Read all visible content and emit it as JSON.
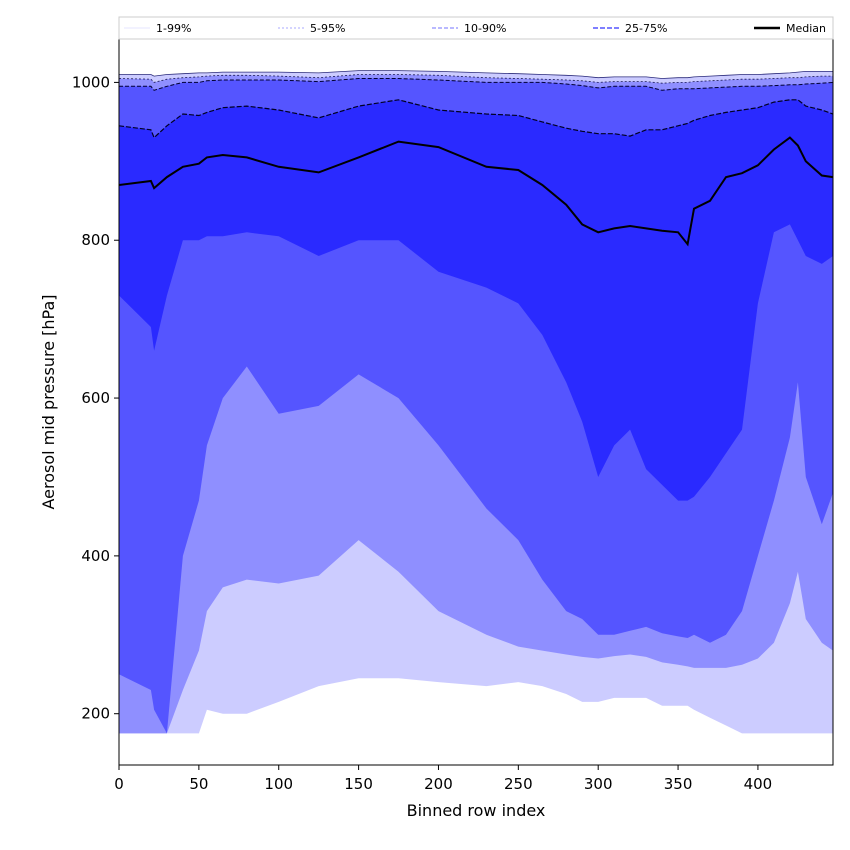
{
  "chart_data": {
    "type": "area",
    "title": "",
    "xlabel": "Binned row index",
    "ylabel": "Aerosol mid pressure [hPa]",
    "xlim": [
      0,
      447
    ],
    "ylim": [
      135,
      1055
    ],
    "xticks": [
      0,
      50,
      100,
      150,
      200,
      250,
      300,
      350,
      400
    ],
    "yticks": [
      200,
      400,
      600,
      800,
      1000
    ],
    "legend_position": "top",
    "legend": [
      {
        "label": "1-99%",
        "color": "#ccccff",
        "style": "solid"
      },
      {
        "label": "5-95%",
        "color": "#8f8fff",
        "style": "dotted"
      },
      {
        "label": "10-90%",
        "color": "#5555ff",
        "style": "dashed"
      },
      {
        "label": "25-75%",
        "color": "#2a2aff",
        "style": "dashed"
      },
      {
        "label": "Median",
        "color": "#000000",
        "style": "solid"
      }
    ],
    "x": [
      0,
      20,
      22,
      30,
      40,
      50,
      55,
      65,
      80,
      100,
      125,
      150,
      175,
      200,
      230,
      250,
      265,
      280,
      290,
      300,
      310,
      320,
      330,
      340,
      350,
      356,
      360,
      370,
      380,
      390,
      400,
      410,
      420,
      425,
      430,
      440,
      447
    ],
    "series": [
      {
        "name": "p1",
        "values": [
          175,
          175,
          175,
          175,
          175,
          175,
          205,
          200,
          200,
          215,
          235,
          245,
          245,
          240,
          235,
          240,
          235,
          225,
          215,
          215,
          220,
          220,
          220,
          210,
          210,
          210,
          205,
          195,
          185,
          175,
          175,
          175,
          175,
          175,
          175,
          175,
          175
        ]
      },
      {
        "name": "p5",
        "values": [
          175,
          175,
          175,
          175,
          230,
          280,
          330,
          360,
          370,
          365,
          375,
          420,
          380,
          330,
          300,
          285,
          280,
          275,
          272,
          270,
          273,
          275,
          272,
          265,
          262,
          260,
          258,
          258,
          258,
          262,
          270,
          290,
          340,
          380,
          320,
          290,
          280
        ]
      },
      {
        "name": "p10",
        "values": [
          250,
          230,
          205,
          175,
          400,
          470,
          540,
          600,
          640,
          580,
          590,
          630,
          600,
          540,
          460,
          420,
          370,
          330,
          320,
          300,
          300,
          305,
          310,
          302,
          298,
          296,
          300,
          290,
          300,
          330,
          400,
          470,
          550,
          620,
          500,
          440,
          480
        ]
      },
      {
        "name": "p25",
        "values": [
          730,
          690,
          660,
          730,
          800,
          800,
          805,
          805,
          810,
          805,
          780,
          800,
          800,
          760,
          740,
          720,
          680,
          620,
          570,
          500,
          540,
          560,
          510,
          490,
          470,
          470,
          475,
          500,
          530,
          560,
          720,
          810,
          820,
          800,
          780,
          770,
          780
        ]
      },
      {
        "name": "median",
        "values": [
          870,
          875,
          866,
          880,
          893,
          897,
          905,
          908,
          905,
          893,
          886,
          905,
          925,
          918,
          893,
          889,
          870,
          845,
          820,
          810,
          815,
          818,
          815,
          812,
          810,
          795,
          840,
          850,
          880,
          885,
          895,
          915,
          930,
          920,
          900,
          882,
          880
        ]
      },
      {
        "name": "p75",
        "values": [
          945,
          940,
          930,
          945,
          960,
          958,
          962,
          968,
          970,
          965,
          955,
          970,
          978,
          965,
          960,
          958,
          950,
          942,
          938,
          935,
          935,
          932,
          940,
          940,
          945,
          948,
          952,
          958,
          962,
          965,
          968,
          975,
          978,
          978,
          970,
          965,
          960
        ]
      },
      {
        "name": "p90",
        "values": [
          995,
          995,
          990,
          995,
          1000,
          1000,
          1002,
          1003,
          1003,
          1003,
          1001,
          1005,
          1005,
          1003,
          1000,
          1000,
          1000,
          998,
          996,
          993,
          995,
          995,
          995,
          990,
          992,
          992,
          992,
          993,
          994,
          995,
          995,
          996,
          997,
          997,
          998,
          999,
          1000
        ]
      },
      {
        "name": "p95",
        "values": [
          1005,
          1004,
          1000,
          1004,
          1006,
          1007,
          1008,
          1009,
          1009,
          1008,
          1006,
          1010,
          1010,
          1009,
          1006,
          1005,
          1004,
          1003,
          1002,
          1000,
          1001,
          1001,
          1001,
          999,
          1000,
          1000,
          1001,
          1002,
          1003,
          1004,
          1004,
          1005,
          1006,
          1006,
          1007,
          1008,
          1008
        ]
      },
      {
        "name": "p99",
        "values": [
          1010,
          1010,
          1008,
          1010,
          1011,
          1012,
          1012,
          1013,
          1013,
          1013,
          1012,
          1015,
          1015,
          1014,
          1012,
          1011,
          1010,
          1009,
          1008,
          1006,
          1007,
          1007,
          1007,
          1005,
          1006,
          1006,
          1007,
          1008,
          1009,
          1010,
          1010,
          1011,
          1012,
          1013,
          1014,
          1014,
          1014
        ]
      }
    ]
  }
}
